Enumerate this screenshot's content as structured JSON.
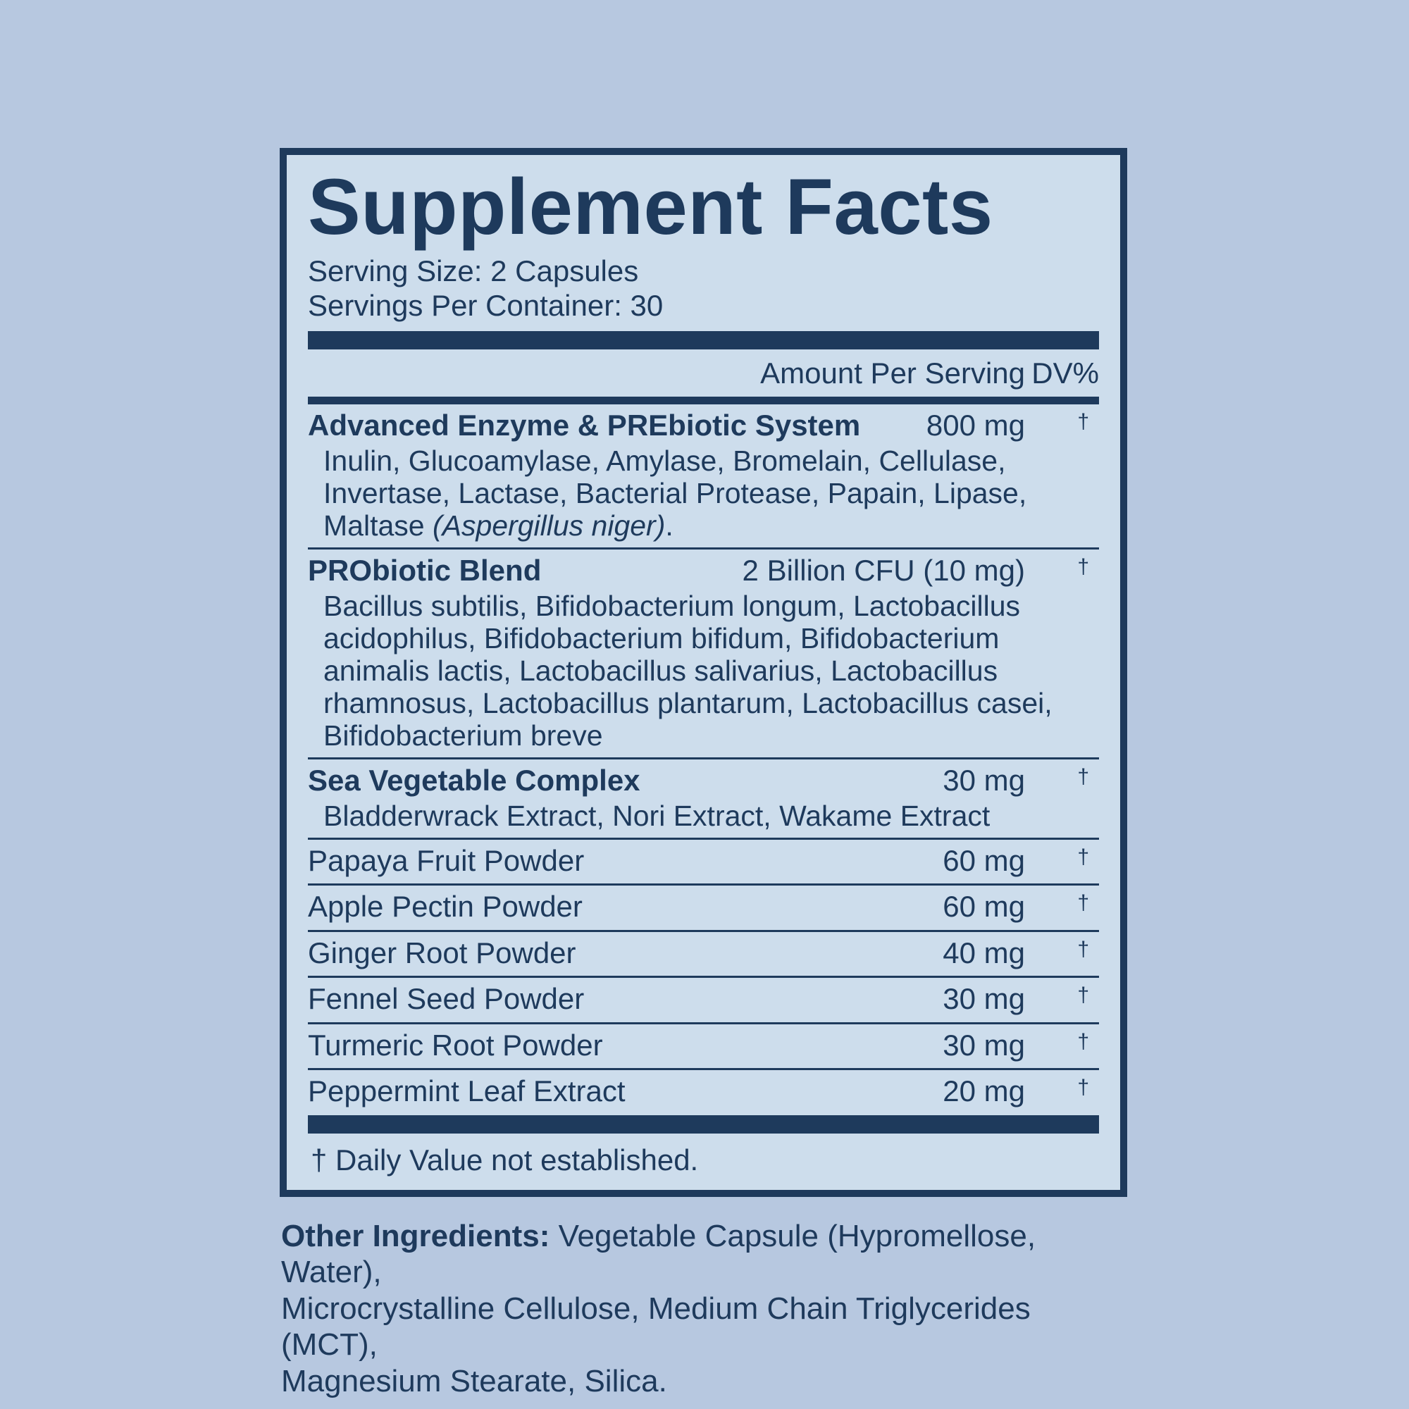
{
  "colors": {
    "page_background": "#b7c8e0",
    "panel_background": "#cdddec",
    "ink": "#1e3a5c"
  },
  "label": {
    "title": "Supplement Facts",
    "serving_size": "Serving Size: 2 Capsules",
    "servings_per_container": "Servings Per Container: 30",
    "columns": {
      "amount": "Amount Per Serving",
      "dv": "DV%"
    },
    "rows": [
      {
        "name": "Advanced Enzyme & PREbiotic System",
        "amount": "800 mg",
        "dv": "†",
        "sub_lines": [
          "Inulin, Glucoamylase, Amylase, Bromelain, Cellulase,",
          "Invertase, Lactase, Bacterial Protease, Papain, Lipase,",
          "Maltase "
        ],
        "sub_italic": "(Aspergillus niger)",
        "sub_suffix": "."
      },
      {
        "name": "PRObiotic Blend",
        "amount": "2 Billion CFU (10 mg)",
        "dv": "†",
        "sub_lines": [
          "Bacillus subtilis, Bifidobacterium longum, Lactobacillus",
          "acidophilus, Bifidobacterium bifidum, Bifidobacterium",
          "animalis lactis, Lactobacillus salivarius, Lactobacillus",
          "rhamnosus, Lactobacillus plantarum, Lactobacillus casei,",
          "Bifidobacterium breve"
        ]
      },
      {
        "name": "Sea Vegetable Complex",
        "amount": "30 mg",
        "dv": "†",
        "sub_lines": [
          "Bladderwrack Extract, Nori Extract, Wakame Extract"
        ]
      },
      {
        "name": "Papaya Fruit Powder",
        "amount": "60 mg",
        "dv": "†"
      },
      {
        "name": "Apple Pectin Powder",
        "amount": "60 mg",
        "dv": "†"
      },
      {
        "name": "Ginger Root Powder",
        "amount": "40 mg",
        "dv": "†"
      },
      {
        "name": "Fennel Seed Powder",
        "amount": "30 mg",
        "dv": "†"
      },
      {
        "name": "Turmeric Root Powder",
        "amount": "30 mg",
        "dv": "†"
      },
      {
        "name": "Peppermint Leaf Extract",
        "amount": "20 mg",
        "dv": "†"
      }
    ],
    "footnote": "† Daily Value not established."
  },
  "other_ingredients": {
    "label": "Other Ingredients:",
    "lines": [
      " Vegetable Capsule (Hypromellose, Water),",
      "Microcrystalline Cellulose, Medium Chain Triglycerides (MCT),",
      "Magnesium Stearate, Silica."
    ]
  }
}
